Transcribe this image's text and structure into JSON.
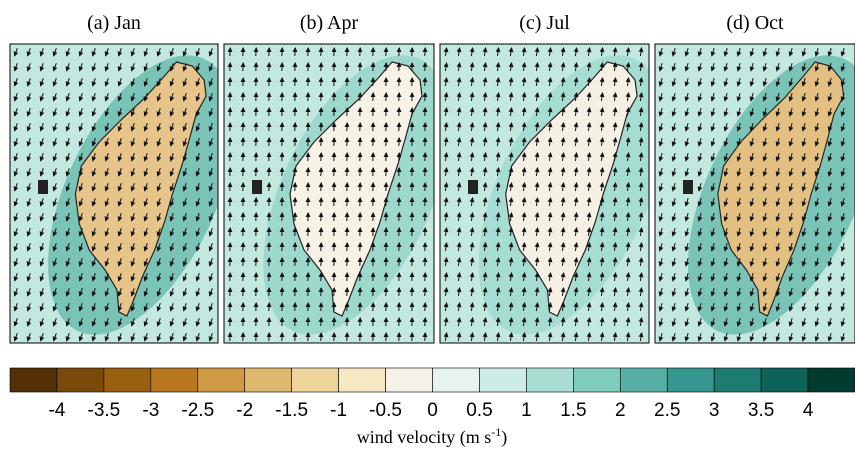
{
  "panels": [
    {
      "title": "(a) Jan"
    },
    {
      "title": "(b) Apr"
    },
    {
      "title": "(c) Jul"
    },
    {
      "title": "(d) Oct"
    }
  ],
  "colorbar": {
    "colors": [
      "#543005",
      "#7a4a0b",
      "#99600f",
      "#b9781f",
      "#cf9a45",
      "#deb86e",
      "#eed49a",
      "#f6e8c3",
      "#f5f2ea",
      "#e8f3f1",
      "#cdece6",
      "#a8ded4",
      "#7fcbbd",
      "#58b0a4",
      "#35978f",
      "#1c7c72",
      "#0d6357",
      "#013c30"
    ],
    "ticks": [
      -4,
      -3.5,
      -3,
      -2.5,
      -2,
      -1.5,
      -1,
      -0.5,
      0,
      0.5,
      1,
      1.5,
      2,
      2.5,
      3,
      3.5,
      4
    ],
    "label_prefix": "wind velocity (m s",
    "label_exponent": "-1",
    "label_suffix": ")"
  }
}
